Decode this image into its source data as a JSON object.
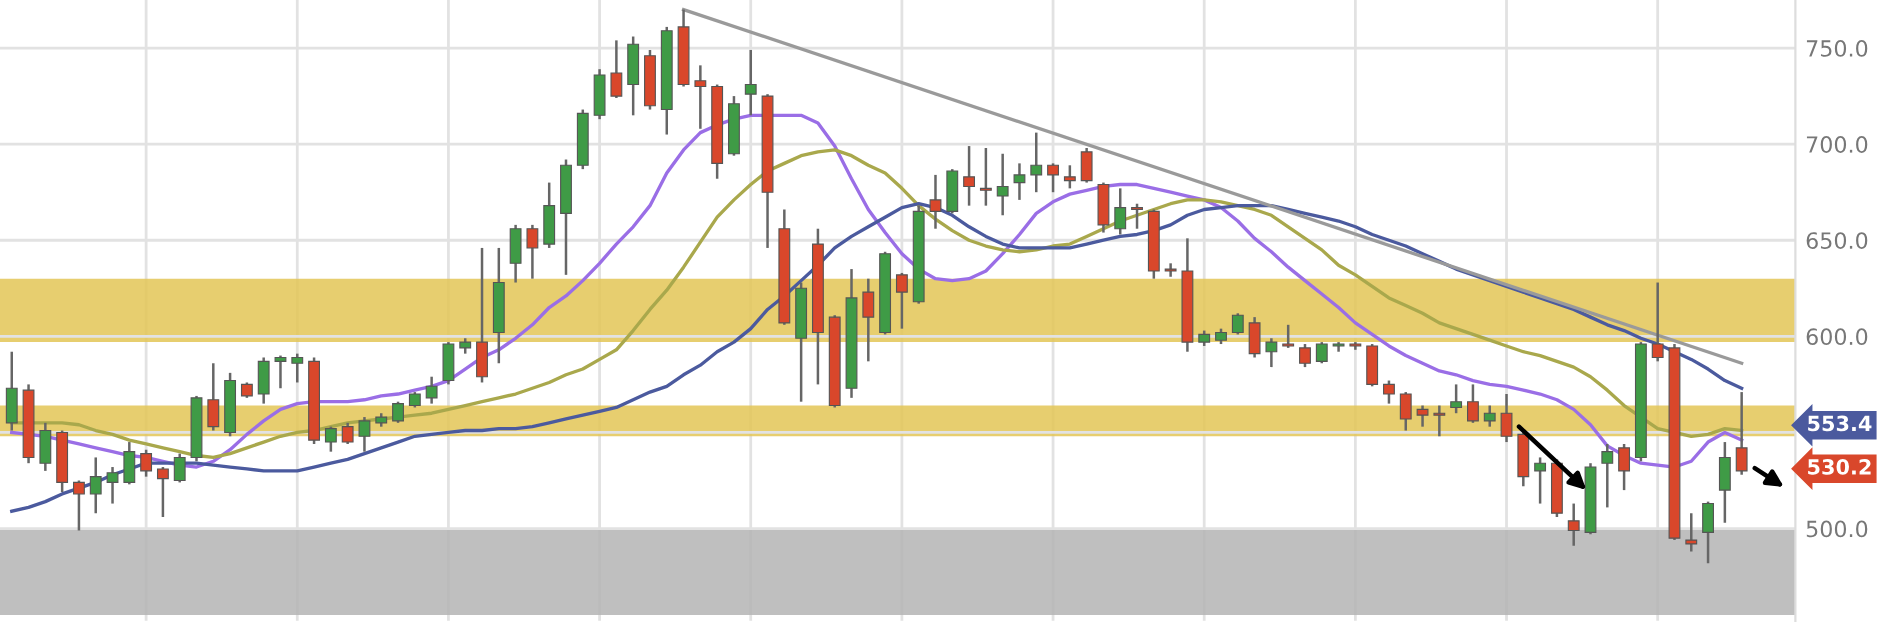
{
  "chart_data": {
    "type": "candlestick",
    "categories": [
      null,
      null,
      null,
      null,
      null,
      null,
      null,
      null,
      null,
      null,
      null,
      null,
      null,
      null,
      null,
      null,
      null,
      null,
      null,
      null,
      null,
      null,
      null,
      null,
      null,
      null,
      null,
      null,
      null,
      null,
      null,
      null,
      null,
      null,
      null,
      null,
      null,
      null,
      null,
      null,
      null,
      null,
      null,
      null,
      null,
      null,
      null,
      null,
      null,
      null,
      null,
      null,
      null,
      null,
      null,
      null,
      null,
      null,
      null,
      null,
      null,
      null,
      null,
      null,
      null,
      null,
      null,
      null,
      null,
      null,
      null,
      null,
      null,
      null,
      null,
      null,
      null,
      null,
      null,
      null,
      null,
      null,
      null,
      null,
      null,
      null,
      null,
      null,
      null,
      null,
      null,
      null,
      null,
      null,
      null,
      null,
      null,
      null,
      null,
      null,
      null,
      null,
      null,
      null
    ],
    "ohlc": [
      [
        555,
        592,
        551,
        573
      ],
      [
        572,
        575,
        534,
        537
      ],
      [
        534,
        555,
        530,
        551
      ],
      [
        550,
        551,
        519,
        524
      ],
      [
        524,
        525,
        499,
        518
      ],
      [
        518,
        537,
        508,
        527
      ],
      [
        524,
        532,
        513,
        529
      ],
      [
        524,
        545,
        523,
        540
      ],
      [
        539,
        541,
        527,
        530
      ],
      [
        531,
        532,
        506,
        526
      ],
      [
        525,
        539,
        524,
        537
      ],
      [
        537,
        569,
        535,
        568
      ],
      [
        567,
        586,
        551,
        553
      ],
      [
        550,
        581,
        548,
        577
      ],
      [
        575,
        576,
        568,
        569
      ],
      [
        570,
        589,
        565,
        587
      ],
      [
        587,
        590,
        573,
        589
      ],
      [
        586,
        591,
        576,
        589
      ],
      [
        587,
        589,
        544,
        546
      ],
      [
        545,
        553,
        540,
        552
      ],
      [
        553,
        555,
        544,
        545
      ],
      [
        548,
        558,
        540,
        556
      ],
      [
        555,
        560,
        553,
        558
      ],
      [
        556,
        566,
        555,
        565
      ],
      [
        564,
        571,
        563,
        570
      ],
      [
        568,
        579,
        565,
        574
      ],
      [
        577,
        597,
        575,
        596
      ],
      [
        594,
        599,
        591,
        597
      ],
      [
        597,
        646,
        576,
        579
      ],
      [
        602,
        646,
        586,
        628
      ],
      [
        638,
        658,
        628,
        656
      ],
      [
        656,
        658,
        630,
        646
      ],
      [
        648,
        680,
        646,
        668
      ],
      [
        664,
        692,
        632,
        689
      ],
      [
        689,
        718,
        687,
        716
      ],
      [
        715,
        739,
        713,
        736
      ],
      [
        737,
        754,
        724,
        725
      ],
      [
        731,
        756,
        715,
        752
      ],
      [
        746,
        749,
        718,
        720
      ],
      [
        718,
        761,
        705,
        759
      ],
      [
        761,
        770,
        730,
        731
      ],
      [
        733,
        741,
        708,
        730
      ],
      [
        730,
        731,
        682,
        690
      ],
      [
        695,
        725,
        694,
        721
      ],
      [
        726,
        749,
        715,
        731
      ],
      [
        725,
        726,
        646,
        675
      ],
      [
        656,
        666,
        606,
        607
      ],
      [
        599,
        628,
        566,
        625
      ],
      [
        648,
        656,
        575,
        602
      ],
      [
        610,
        611,
        563,
        564
      ],
      [
        573,
        635,
        568,
        620
      ],
      [
        623,
        630,
        587,
        610
      ],
      [
        602,
        644,
        601,
        643
      ],
      [
        632,
        633,
        604,
        623
      ],
      [
        618,
        668,
        617,
        665
      ],
      [
        671,
        684,
        656,
        665
      ],
      [
        665,
        687,
        664,
        686
      ],
      [
        683,
        699,
        668,
        678
      ],
      [
        677,
        698,
        668,
        676
      ],
      [
        673,
        695,
        663,
        678
      ],
      [
        680,
        690,
        671,
        684
      ],
      [
        684,
        706,
        675,
        689
      ],
      [
        689,
        690,
        675,
        684
      ],
      [
        683,
        689,
        677,
        681
      ],
      [
        696,
        698,
        680,
        681
      ],
      [
        679,
        680,
        654,
        658
      ],
      [
        656,
        677,
        653,
        667
      ],
      [
        667,
        669,
        656,
        666
      ],
      [
        665,
        666,
        630,
        634
      ],
      [
        635,
        638,
        631,
        634
      ],
      [
        634,
        651,
        592,
        597
      ],
      [
        597,
        603,
        595,
        601
      ],
      [
        598,
        604,
        596,
        602
      ],
      [
        602,
        612,
        601,
        611
      ],
      [
        607,
        610,
        589,
        591
      ],
      [
        592,
        599,
        584,
        597
      ],
      [
        596,
        606,
        594,
        595
      ],
      [
        594,
        596,
        584,
        586
      ],
      [
        587,
        597,
        586,
        596
      ],
      [
        595,
        597,
        592,
        596
      ],
      [
        596,
        597,
        593,
        595
      ],
      [
        595,
        596,
        574,
        575
      ],
      [
        575,
        577,
        565,
        570
      ],
      [
        570,
        571,
        551,
        557
      ],
      [
        562,
        564,
        553,
        559
      ],
      [
        560,
        564,
        548,
        559
      ],
      [
        563,
        575,
        560,
        566
      ],
      [
        566,
        575,
        555,
        556
      ],
      [
        556,
        564,
        553,
        560
      ],
      [
        560,
        570,
        545,
        548
      ],
      [
        549,
        550,
        522,
        527
      ],
      [
        530,
        537,
        513,
        534
      ],
      [
        534,
        536,
        506,
        508
      ],
      [
        504,
        513,
        491,
        499
      ],
      [
        498,
        534,
        497,
        532
      ],
      [
        534,
        544,
        511,
        540
      ],
      [
        542,
        544,
        520,
        530
      ],
      [
        537,
        597,
        535,
        596
      ],
      [
        596,
        628,
        587,
        589
      ],
      [
        594,
        596,
        494,
        495
      ],
      [
        494,
        508,
        488,
        492
      ],
      [
        498,
        514,
        482,
        513
      ],
      [
        520,
        545,
        503,
        537
      ],
      [
        542,
        571,
        528,
        530
      ]
    ],
    "colors": [
      "#3f9b46",
      "#d9472b",
      "#3f9b46",
      "#d9472b",
      "#d9472b",
      "#3f9b46",
      "#3f9b46",
      "#3f9b46",
      "#d9472b",
      "#d9472b",
      "#3f9b46",
      "#3f9b46",
      "#d9472b",
      "#3f9b46",
      "#d9472b",
      "#3f9b46",
      "#3f9b46",
      "#3f9b46",
      "#d9472b",
      "#3f9b46",
      "#d9472b",
      "#3f9b46",
      "#3f9b46",
      "#3f9b46",
      "#3f9b46",
      "#3f9b46",
      "#3f9b46",
      "#3f9b46",
      "#d9472b",
      "#3f9b46",
      "#3f9b46",
      "#d9472b",
      "#3f9b46",
      "#3f9b46",
      "#3f9b46",
      "#3f9b46",
      "#d9472b",
      "#3f9b46",
      "#d9472b",
      "#3f9b46",
      "#d9472b",
      "#d9472b",
      "#d9472b",
      "#3f9b46",
      "#3f9b46",
      "#d9472b",
      "#d9472b",
      "#3f9b46",
      "#d9472b",
      "#d9472b",
      "#3f9b46",
      "#d9472b",
      "#3f9b46",
      "#d9472b",
      "#3f9b46",
      "#d9472b",
      "#3f9b46",
      "#d9472b",
      "#d9472b",
      "#3f9b46",
      "#3f9b46",
      "#3f9b46",
      "#d9472b",
      "#d9472b",
      "#d9472b",
      "#d9472b",
      "#3f9b46",
      "#d9472b",
      "#d9472b",
      "#d9472b",
      "#d9472b",
      "#3f9b46",
      "#3f9b46",
      "#3f9b46",
      "#d9472b",
      "#3f9b46",
      "#d9472b",
      "#d9472b",
      "#3f9b46",
      "#3f9b46",
      "#d9472b",
      "#d9472b",
      "#d9472b",
      "#d9472b",
      "#d9472b",
      "#d9472b",
      "#3f9b46",
      "#d9472b",
      "#3f9b46",
      "#d9472b",
      "#d9472b",
      "#3f9b46",
      "#d9472b",
      "#d9472b",
      "#3f9b46",
      "#3f9b46",
      "#d9472b",
      "#3f9b46",
      "#d9472b",
      "#d9472b",
      "#d9472b",
      "#3f9b46",
      "#3f9b46",
      "#d9472b"
    ],
    "series": [
      {
        "type": "line",
        "color": "#9a6ee6",
        "values": [
          550,
          549,
          548,
          546,
          544,
          542,
          540,
          538,
          537,
          535,
          533,
          532,
          535,
          541,
          549,
          556,
          562,
          565,
          566,
          566,
          566,
          567,
          569,
          570,
          572,
          574,
          577,
          583,
          589,
          593,
          599,
          606,
          615,
          621,
          629,
          638,
          648,
          657,
          668,
          685,
          697,
          706,
          710,
          713,
          715,
          715,
          715,
          715,
          711,
          699,
          682,
          666,
          654,
          643,
          635,
          630,
          629,
          630,
          634,
          643,
          653,
          664,
          670,
          674,
          676,
          678,
          679,
          679,
          677,
          675,
          673,
          671,
          667,
          660,
          651,
          644,
          636,
          629,
          622,
          615,
          607,
          601,
          595,
          590,
          586,
          582,
          580,
          577,
          575,
          574,
          572,
          570,
          567,
          562,
          554,
          543,
          538,
          534,
          533,
          532,
          535,
          545,
          550,
          546
        ]
      },
      {
        "type": "line",
        "color": "#a9a84c",
        "values": [
          555,
          555,
          555,
          555,
          554,
          551,
          549,
          546,
          544,
          542,
          540,
          538,
          537,
          539,
          542,
          545,
          548,
          550,
          551,
          553,
          555,
          556,
          557,
          558,
          559,
          560,
          562,
          564,
          566,
          568,
          570,
          573,
          576,
          580,
          583,
          588,
          593,
          603,
          614,
          624,
          636,
          649,
          662,
          671,
          679,
          686,
          690,
          694,
          696,
          697,
          694,
          689,
          685,
          677,
          668,
          661,
          655,
          650,
          647,
          645,
          644,
          645,
          647,
          648,
          652,
          656,
          660,
          663,
          666,
          669,
          671,
          671,
          670,
          668,
          666,
          663,
          657,
          651,
          645,
          637,
          632,
          626,
          620,
          616,
          612,
          607,
          604,
          601,
          598,
          595,
          592,
          590,
          587,
          584,
          579,
          572,
          564,
          558,
          552,
          550,
          548,
          549,
          552,
          551
        ]
      },
      {
        "type": "line",
        "color": "#4b5a9e",
        "values": [
          509,
          511,
          514,
          518,
          521,
          524,
          528,
          531,
          534,
          534,
          534,
          534,
          533,
          532,
          531,
          530,
          530,
          530,
          532,
          534,
          536,
          539,
          542,
          545,
          548,
          549,
          550,
          551,
          551,
          552,
          552,
          553,
          555,
          557,
          559,
          561,
          563,
          567,
          571,
          574,
          580,
          585,
          592,
          597,
          604,
          614,
          621,
          629,
          637,
          646,
          652,
          657,
          662,
          667,
          669,
          667,
          663,
          657,
          652,
          648,
          646,
          646,
          646,
          646,
          648,
          650,
          652,
          653,
          655,
          658,
          663,
          666,
          667,
          668,
          668,
          668,
          666,
          664,
          662,
          660,
          657,
          653,
          650,
          647,
          643,
          639,
          635,
          632,
          629,
          626,
          623,
          620,
          617,
          614,
          610,
          606,
          603,
          599,
          596,
          592,
          588,
          583,
          577,
          573
        ]
      },
      {
        "type": "line",
        "color": "#9a9a9a",
        "values": [
          null,
          null,
          null,
          null,
          null,
          null,
          null,
          null,
          null,
          null,
          null,
          null,
          null,
          null,
          null,
          null,
          null,
          null,
          null,
          null,
          null,
          null,
          null,
          null,
          null,
          null,
          null,
          null,
          null,
          null,
          null,
          null,
          null,
          null,
          null,
          null,
          null,
          null,
          null,
          null,
          770,
          null,
          null,
          null,
          null,
          null,
          null,
          null,
          null,
          null,
          null,
          null,
          null,
          null,
          null,
          null,
          null,
          null,
          null,
          null,
          null,
          null,
          null,
          null,
          null,
          null,
          null,
          null,
          null,
          null,
          null,
          null,
          null,
          null,
          null,
          null,
          null,
          null,
          null,
          null,
          null,
          null,
          null,
          null,
          null,
          null,
          null,
          null,
          null,
          null,
          null,
          null,
          null,
          null,
          null,
          null,
          null,
          null,
          null,
          null,
          null,
          null,
          null,
          586
        ]
      }
    ],
    "bands": [
      {
        "axis": "y",
        "from": 597,
        "to": 630,
        "color": "#e3c656"
      },
      {
        "axis": "y",
        "from": 548,
        "to": 564,
        "color": "#e3c656"
      },
      {
        "axis": "y",
        "from": 455,
        "to": 500,
        "color": "#b4b4b4"
      }
    ],
    "annotations": [
      "553.4",
      "530.2"
    ],
    "ylim": [
      452,
      775
    ],
    "yticks": [
      {
        "value": 500,
        "label": "500.0"
      },
      {
        "value": 550,
        "label": null
      },
      {
        "value": 600,
        "label": "600.0"
      },
      {
        "value": 650,
        "label": "650.0"
      },
      {
        "value": 700,
        "label": "700.0"
      },
      {
        "value": 750,
        "label": "750.0"
      }
    ],
    "tick_labels": "y",
    "grid": true
  }
}
